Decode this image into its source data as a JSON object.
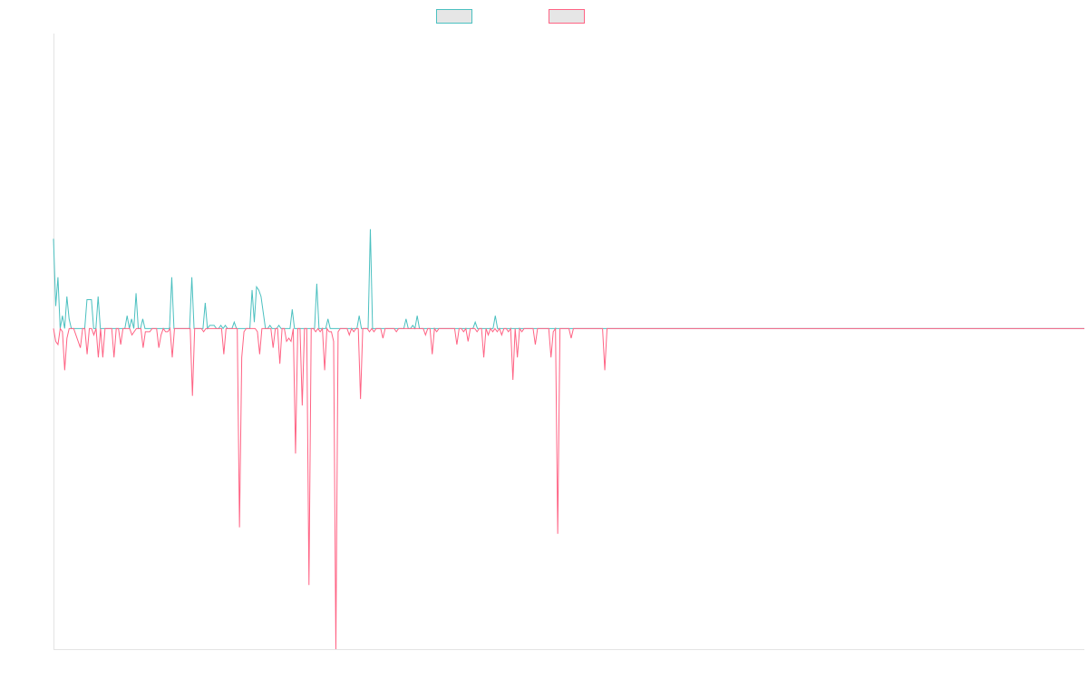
{
  "chart_data": {
    "type": "line",
    "title": "",
    "xlabel": "",
    "ylabel": "",
    "legend_position": "top-center",
    "grid": false,
    "ylim": [
      -100,
      92
    ],
    "series": [
      {
        "color": "#4bc0c0",
        "legend_fill": "#e6e6e6",
        "values": [
          28,
          7,
          16,
          0,
          4,
          0,
          10,
          3,
          0,
          0,
          0,
          0,
          0,
          0,
          0,
          9,
          9,
          9,
          0,
          0,
          10,
          0,
          0,
          0,
          0,
          0,
          0,
          0,
          0,
          0,
          0,
          0,
          0,
          4,
          0,
          3,
          0,
          11,
          0,
          0,
          3,
          0,
          0,
          0,
          0,
          0,
          0,
          0,
          0,
          0,
          0,
          0,
          0,
          16,
          0,
          0,
          0,
          0,
          0,
          0,
          0,
          0,
          16,
          0,
          0,
          0,
          0,
          0,
          8,
          0,
          1,
          1,
          1,
          0,
          0,
          1,
          0,
          1,
          0,
          0,
          0,
          2,
          0,
          0,
          0,
          0,
          0,
          0,
          0,
          12,
          2,
          13,
          12,
          10,
          5,
          0,
          0,
          1,
          0,
          0,
          0,
          1,
          0,
          0,
          0,
          0,
          0,
          6,
          0,
          0,
          0,
          0,
          0,
          0,
          0,
          0,
          0,
          0,
          14,
          0,
          0,
          0,
          0,
          3,
          0,
          0,
          0,
          0,
          0,
          0,
          0,
          0,
          0,
          0,
          0,
          0,
          0,
          4,
          0,
          0,
          0,
          0,
          31,
          0,
          0,
          0,
          0,
          0,
          0,
          0,
          0,
          0,
          0,
          0,
          0,
          0,
          0,
          0,
          3,
          0,
          0,
          1,
          0,
          4,
          0,
          0,
          0,
          0,
          0,
          0,
          0,
          0,
          0,
          0,
          0,
          0,
          0,
          0,
          0,
          0,
          0,
          0,
          0,
          0,
          0,
          0,
          0,
          0,
          0,
          2,
          0,
          0,
          0,
          0,
          0,
          0,
          0,
          0,
          4,
          0,
          0,
          0,
          0,
          0,
          0,
          0,
          0,
          0,
          0,
          0,
          0,
          0,
          0,
          0,
          0,
          0,
          0,
          0,
          0,
          0,
          0,
          0,
          0,
          0,
          0,
          0,
          0,
          0,
          0,
          0,
          0,
          0,
          0,
          0,
          0,
          0,
          0,
          0,
          0,
          0,
          0,
          0,
          0,
          0,
          0,
          0,
          0,
          0,
          0,
          0,
          0,
          0,
          0,
          0,
          0,
          0,
          0,
          0,
          0,
          0,
          0,
          0,
          0,
          0,
          0,
          0,
          0,
          0,
          0,
          0,
          0,
          0,
          0,
          0,
          0,
          0,
          0,
          0,
          0,
          0,
          0,
          0,
          0,
          0,
          0,
          0,
          0,
          0,
          0,
          0,
          0,
          0,
          0,
          0,
          0,
          0,
          0,
          0,
          0,
          0,
          0,
          0,
          0,
          0,
          0,
          0,
          0,
          0,
          0,
          0,
          0,
          0,
          0,
          0,
          0,
          0,
          0,
          0,
          0,
          0,
          0,
          0,
          0,
          0,
          0,
          0,
          0,
          0,
          0,
          0,
          0,
          0,
          0,
          0,
          0,
          0,
          0,
          0,
          0,
          0,
          0,
          0,
          0,
          0,
          0,
          0,
          0,
          0,
          0,
          0,
          0,
          0,
          0,
          0,
          0,
          0,
          0,
          0,
          0,
          0,
          0,
          0,
          0,
          0,
          0,
          0,
          0,
          0,
          0,
          0,
          0,
          0,
          0,
          0,
          0,
          0,
          0,
          0,
          0,
          0,
          0,
          0,
          0,
          0,
          0,
          0,
          0,
          0,
          0,
          0,
          0,
          0,
          0,
          0,
          0,
          0,
          0,
          0,
          0,
          0,
          0,
          0,
          0,
          0,
          0,
          0,
          0,
          0,
          0,
          0,
          0,
          0,
          0,
          0,
          0,
          0,
          0,
          0,
          0,
          0,
          0,
          0,
          0,
          0,
          0,
          0,
          0,
          0,
          0,
          0,
          0,
          0,
          0,
          0,
          0,
          0,
          0,
          0,
          0,
          0,
          0,
          0,
          0,
          0,
          0,
          0,
          0,
          0,
          0,
          0,
          0,
          0,
          0,
          0,
          0,
          0,
          0,
          0,
          0,
          0,
          0,
          0,
          0
        ]
      },
      {
        "color": "#ff6384",
        "legend_fill": "#e6e6e6",
        "values": [
          0,
          -4,
          -5,
          0,
          -1,
          -13,
          -3,
          0,
          0,
          0,
          -2,
          -4,
          -6,
          0,
          0,
          -8,
          0,
          0,
          -2,
          0,
          -9,
          0,
          -9,
          0,
          0,
          0,
          0,
          -9,
          0,
          0,
          -5,
          0,
          0,
          0,
          0,
          -2,
          -1,
          0,
          0,
          0,
          -6,
          -1,
          -1,
          -1,
          0,
          0,
          0,
          -6,
          -2,
          0,
          -1,
          -1,
          0,
          -9,
          0,
          0,
          0,
          0,
          0,
          0,
          0,
          0,
          -21,
          0,
          0,
          0,
          0,
          -1,
          0,
          0,
          0,
          0,
          0,
          0,
          0,
          0,
          -8,
          0,
          0,
          0,
          0,
          0,
          0,
          -62,
          -9,
          -1,
          0,
          0,
          0,
          0,
          0,
          -1,
          -8,
          0,
          0,
          0,
          0,
          0,
          -6,
          0,
          0,
          -11,
          0,
          0,
          -4,
          -3,
          -4,
          0,
          -39,
          0,
          0,
          -24,
          0,
          0,
          -80,
          0,
          0,
          -1,
          0,
          -1,
          0,
          -13,
          0,
          -1,
          -1,
          -4,
          -100,
          -1,
          0,
          0,
          0,
          0,
          -2,
          0,
          -1,
          0,
          0,
          -22,
          0,
          0,
          0,
          -1,
          0,
          -1,
          0,
          0,
          0,
          -3,
          0,
          0,
          0,
          0,
          0,
          -1,
          0,
          0,
          0,
          0,
          0,
          0,
          0,
          0,
          0,
          0,
          0,
          0,
          -2,
          0,
          0,
          -8,
          0,
          -1,
          0,
          0,
          0,
          0,
          0,
          0,
          0,
          0,
          -5,
          0,
          0,
          -1,
          0,
          -4,
          0,
          0,
          0,
          -1,
          0,
          0,
          -9,
          0,
          -2,
          0,
          -1,
          0,
          -1,
          0,
          -2,
          0,
          0,
          -1,
          0,
          -16,
          0,
          -9,
          0,
          -1,
          0,
          0,
          0,
          0,
          0,
          -5,
          0,
          0,
          0,
          0,
          0,
          0,
          -9,
          -1,
          0,
          -64,
          0,
          0,
          0,
          0,
          0,
          -3,
          0,
          0,
          0,
          0,
          0,
          0,
          0,
          0,
          0,
          0,
          0,
          0,
          0,
          0,
          -13,
          0,
          0,
          0,
          0,
          0,
          0,
          0,
          0,
          0,
          0,
          0,
          0,
          0,
          0,
          0,
          0,
          0,
          0,
          0,
          0,
          0,
          0,
          0,
          0,
          0,
          0,
          0,
          0,
          0,
          0,
          0,
          0,
          0,
          0,
          0,
          0,
          0,
          0,
          0,
          0,
          0,
          0,
          0,
          0,
          0,
          0,
          0,
          0,
          0,
          0,
          0,
          0,
          0,
          0,
          0,
          0,
          0,
          0,
          0,
          0,
          0,
          0,
          0,
          0,
          0,
          0,
          0,
          0,
          0,
          0,
          0,
          0,
          0,
          0,
          0,
          0,
          0,
          0,
          0,
          0,
          0,
          0,
          0,
          0,
          0,
          0,
          0,
          0,
          0,
          0,
          0,
          0,
          0,
          0,
          0,
          0,
          0,
          0,
          0,
          0,
          0,
          0,
          0,
          0,
          0,
          0,
          0,
          0,
          0,
          0,
          0,
          0,
          0,
          0,
          0,
          0,
          0,
          0,
          0,
          0,
          0,
          0,
          0,
          0,
          0,
          0,
          0,
          0,
          0,
          0,
          0,
          0,
          0,
          0,
          0,
          0,
          0,
          0,
          0,
          0,
          0,
          0,
          0,
          0,
          0,
          0,
          0,
          0,
          0,
          0,
          0,
          0,
          0,
          0,
          0,
          0,
          0,
          0,
          0,
          0,
          0,
          0,
          0,
          0,
          0,
          0,
          0,
          0,
          0,
          0,
          0,
          0,
          0,
          0,
          0,
          0,
          0,
          0,
          0,
          0,
          0,
          0,
          0,
          0,
          0,
          0,
          0,
          0,
          0,
          0,
          0,
          0,
          0,
          0,
          0,
          0,
          0,
          0,
          0,
          0,
          0,
          0,
          0,
          0,
          0,
          0,
          0,
          0,
          0,
          0,
          0,
          0,
          0,
          0
        ]
      }
    ]
  }
}
